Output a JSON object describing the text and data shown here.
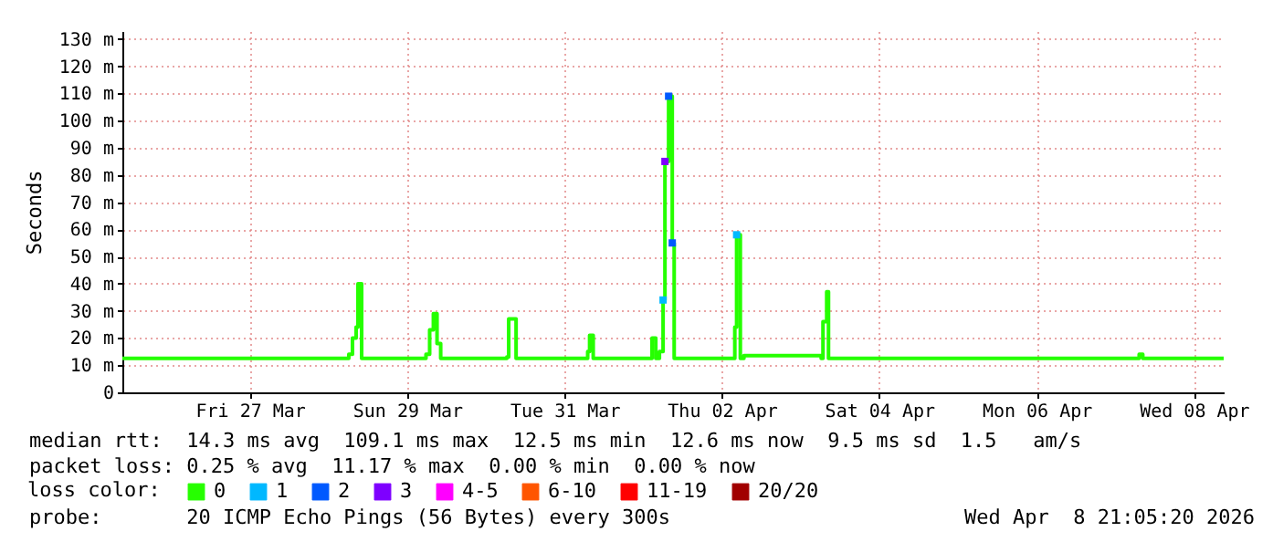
{
  "chart_data": {
    "type": "step",
    "ylabel": "Seconds",
    "legend_title": "loss color:",
    "legend": "bottom",
    "grid": true,
    "xlim": [
      "2026-03-25T21:05",
      "2026-04-08T21:05"
    ],
    "xticks": [
      {
        "value": "2026-03-27T12:00",
        "label": "Fri 27 Mar"
      },
      {
        "value": "2026-03-29T12:00",
        "label": "Sun 29 Mar"
      },
      {
        "value": "2026-03-31T12:00",
        "label": "Tue 31 Mar"
      },
      {
        "value": "2026-04-02T12:00",
        "label": "Thu 02 Apr"
      },
      {
        "value": "2026-04-04T12:00",
        "label": "Sat 04 Apr"
      },
      {
        "value": "2026-04-06T12:00",
        "label": "Mon 06 Apr"
      },
      {
        "value": "2026-04-08T12:00",
        "label": "Wed 08 Apr"
      }
    ],
    "ylim": [
      0,
      133
    ],
    "yticks": [
      0,
      {
        "value": 10,
        "label": "10 m"
      },
      {
        "value": 20,
        "label": "20 m"
      },
      {
        "value": 30,
        "label": "30 m"
      },
      {
        "value": 40,
        "label": "40 m"
      },
      {
        "value": 50,
        "label": "50 m"
      },
      {
        "value": 60,
        "label": "60 m"
      },
      {
        "value": 70,
        "label": "70 m"
      },
      {
        "value": 80,
        "label": "80 m"
      },
      {
        "value": 90,
        "label": "90 m"
      },
      {
        "value": 100,
        "label": "100 m"
      },
      {
        "value": 110,
        "label": "110 m"
      },
      {
        "value": 120,
        "label": "120 m"
      },
      {
        "value": 130,
        "label": "130 m"
      }
    ],
    "series": [
      {
        "name": "0",
        "color": "#26ff00",
        "x": [
          "2026-03-25T21:05",
          "2026-03-28T18:10",
          "2026-03-28T19:17",
          "2026-03-28T20:24",
          "2026-03-28T20:58",
          "2026-03-28T22:05",
          "2026-03-29T17:43",
          "2026-03-29T18:50",
          "2026-03-29T19:58",
          "2026-03-29T21:05",
          "2026-03-29T22:12",
          "2026-03-30T18:23",
          "2026-03-30T18:57",
          "2026-03-30T21:12",
          "2026-03-31T19:03",
          "2026-03-31T19:38",
          "2026-03-31T20:44",
          "2026-04-01T14:41",
          "2026-04-01T15:49",
          "2026-04-01T16:56",
          "2026-04-01T18:03",
          "2026-04-01T18:37",
          "2026-04-01T19:44",
          "2026-04-01T20:51",
          "2026-04-01T21:26",
          "2026-04-02T15:56",
          "2026-04-02T16:29",
          "2026-04-02T17:37",
          "2026-04-02T18:43",
          "2026-04-03T18:17",
          "2026-04-03T18:50",
          "2026-04-03T19:58",
          "2026-04-03T20:31",
          "2026-04-07T19:18",
          "2026-04-07T20:24",
          "2026-04-08T21:05"
        ],
        "values": [
          12.5,
          14,
          20,
          24,
          40,
          12.5,
          14,
          23,
          29,
          18,
          12.5,
          13,
          27,
          12.5,
          15,
          21,
          12.5,
          20,
          12.5,
          15,
          34,
          85,
          109,
          55,
          12.5,
          24,
          58,
          12.5,
          13.5,
          12.5,
          26,
          37,
          12.5,
          14,
          12.5,
          12.5
        ]
      },
      {
        "name": "1",
        "color": "#00b8ff",
        "type": "scatter",
        "marker": "square",
        "x": [
          "2026-04-01T18:03",
          "2026-04-02T16:29"
        ],
        "values": [
          34,
          58
        ]
      },
      {
        "name": "2",
        "color": "#0059ff",
        "type": "scatter",
        "marker": "square",
        "x": [
          "2026-04-01T19:44",
          "2026-04-01T20:51"
        ],
        "values": [
          109,
          55
        ]
      },
      {
        "name": "3",
        "color": "#7e00ff",
        "type": "scatter",
        "marker": "square",
        "x": [
          "2026-04-01T18:37"
        ],
        "values": [
          85
        ]
      },
      {
        "name": "4-5",
        "color": "#ff00ff",
        "type": "scatter",
        "marker": "square"
      },
      {
        "name": "6-10",
        "color": "#ff5500",
        "type": "scatter",
        "marker": "square"
      },
      {
        "name": "11-19",
        "color": "#ff0000",
        "type": "scatter",
        "marker": "square"
      },
      {
        "name": "20/20",
        "color": "#a10000",
        "type": "scatter",
        "marker": "square"
      }
    ],
    "annotations": [
      "median rtt:  14.3 ms avg  109.1 ms max  12.5 ms min  12.6 ms now  9.5 ms sd  1.5   am/s",
      "packet loss: 0.25 % avg  11.17 % max  0.00 % min  0.00 % now",
      "probe:       20 ICMP Echo Pings (56 Bytes) every 300s",
      "Wed Apr  8 21:05:20 2026"
    ]
  }
}
